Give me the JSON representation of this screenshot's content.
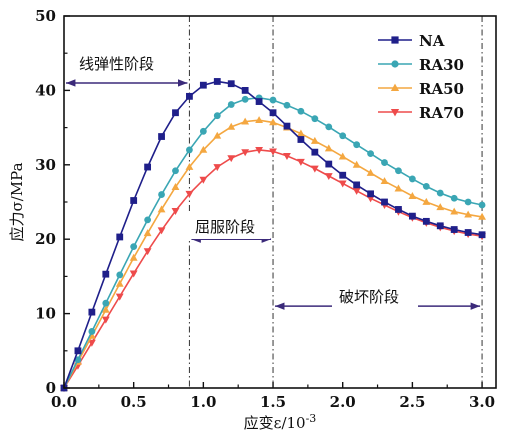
{
  "chart_data": {
    "type": "line",
    "xlabel_main": "应变ε/10",
    "xlabel_exp": "-3",
    "ylabel": "应力σ/MPa",
    "xlim": [
      0,
      3.1
    ],
    "ylim": [
      0,
      50
    ],
    "xticks": [
      "0.0",
      "0.5",
      "1.0",
      "1.5",
      "2.0",
      "2.5",
      "3.0"
    ],
    "yticks": [
      "0",
      "10",
      "20",
      "30",
      "40",
      "50"
    ],
    "legend_position": "top-right",
    "series": [
      {
        "name": "NA",
        "color": "#1f1f8a",
        "marker": "square",
        "x": [
          0,
          0.1,
          0.2,
          0.3,
          0.4,
          0.5,
          0.6,
          0.7,
          0.8,
          0.9,
          1.0,
          1.1,
          1.2,
          1.3,
          1.4,
          1.5,
          1.6,
          1.7,
          1.8,
          1.9,
          2.0,
          2.1,
          2.2,
          2.3,
          2.4,
          2.5,
          2.6,
          2.7,
          2.8,
          2.9,
          3.0
        ],
        "y": [
          0,
          5.0,
          10.2,
          15.3,
          20.3,
          25.2,
          29.7,
          33.8,
          37.0,
          39.2,
          40.7,
          41.2,
          40.9,
          40.0,
          38.5,
          37.0,
          35.2,
          33.4,
          31.7,
          30.1,
          28.6,
          27.3,
          26.1,
          25.0,
          24.0,
          23.1,
          22.4,
          21.8,
          21.3,
          20.9,
          20.6
        ]
      },
      {
        "name": "RA30",
        "color": "#3aa6b4",
        "marker": "circle",
        "x": [
          0,
          0.1,
          0.2,
          0.3,
          0.4,
          0.5,
          0.6,
          0.7,
          0.8,
          0.9,
          1.0,
          1.1,
          1.2,
          1.3,
          1.4,
          1.5,
          1.6,
          1.7,
          1.8,
          1.9,
          2.0,
          2.1,
          2.2,
          2.3,
          2.4,
          2.5,
          2.6,
          2.7,
          2.8,
          2.9,
          3.0
        ],
        "y": [
          0,
          3.8,
          7.6,
          11.4,
          15.2,
          19.0,
          22.6,
          26.0,
          29.2,
          32.0,
          34.5,
          36.6,
          38.1,
          38.8,
          39.0,
          38.7,
          38.0,
          37.2,
          36.2,
          35.1,
          33.9,
          32.7,
          31.5,
          30.3,
          29.2,
          28.1,
          27.1,
          26.2,
          25.5,
          25.0,
          24.6
        ]
      },
      {
        "name": "RA50",
        "color": "#f4a740",
        "marker": "triangle-up",
        "x": [
          0,
          0.1,
          0.2,
          0.3,
          0.4,
          0.5,
          0.6,
          0.7,
          0.8,
          0.9,
          1.0,
          1.1,
          1.2,
          1.3,
          1.4,
          1.5,
          1.6,
          1.7,
          1.8,
          1.9,
          2.0,
          2.1,
          2.2,
          2.3,
          2.4,
          2.5,
          2.6,
          2.7,
          2.8,
          2.9,
          3.0
        ],
        "y": [
          0,
          3.5,
          7.0,
          10.5,
          14.0,
          17.5,
          20.8,
          24.0,
          27.0,
          29.7,
          32.0,
          33.9,
          35.1,
          35.8,
          36.0,
          35.7,
          35.0,
          34.2,
          33.2,
          32.2,
          31.1,
          30.0,
          28.9,
          27.8,
          26.8,
          25.8,
          25.0,
          24.3,
          23.7,
          23.3,
          23.0
        ]
      },
      {
        "name": "RA70",
        "color": "#ee4b4b",
        "marker": "triangle-down",
        "x": [
          0,
          0.1,
          0.2,
          0.3,
          0.4,
          0.5,
          0.6,
          0.7,
          0.8,
          0.9,
          1.0,
          1.1,
          1.2,
          1.3,
          1.4,
          1.5,
          1.6,
          1.7,
          1.8,
          1.9,
          2.0,
          2.1,
          2.2,
          2.3,
          2.4,
          2.5,
          2.6,
          2.7,
          2.8,
          2.9,
          3.0
        ],
        "y": [
          0,
          3.0,
          6.1,
          9.2,
          12.3,
          15.4,
          18.4,
          21.2,
          23.8,
          26.1,
          28.0,
          29.7,
          30.9,
          31.7,
          32.0,
          31.8,
          31.2,
          30.4,
          29.5,
          28.5,
          27.5,
          26.5,
          25.5,
          24.6,
          23.7,
          22.9,
          22.2,
          21.6,
          21.1,
          20.7,
          20.4
        ]
      }
    ],
    "vlines": [
      0.9,
      1.5,
      3.0
    ],
    "phases": [
      {
        "label": "线弹性阶段",
        "x_start": 0,
        "x_end": 0.9,
        "y": 41
      },
      {
        "label": "屈服阶段",
        "x_start": 0.9,
        "x_end": 1.5,
        "y": 20
      },
      {
        "label": "破坏阶段",
        "x_start": 1.5,
        "x_end": 3.0,
        "y": 11
      }
    ]
  }
}
